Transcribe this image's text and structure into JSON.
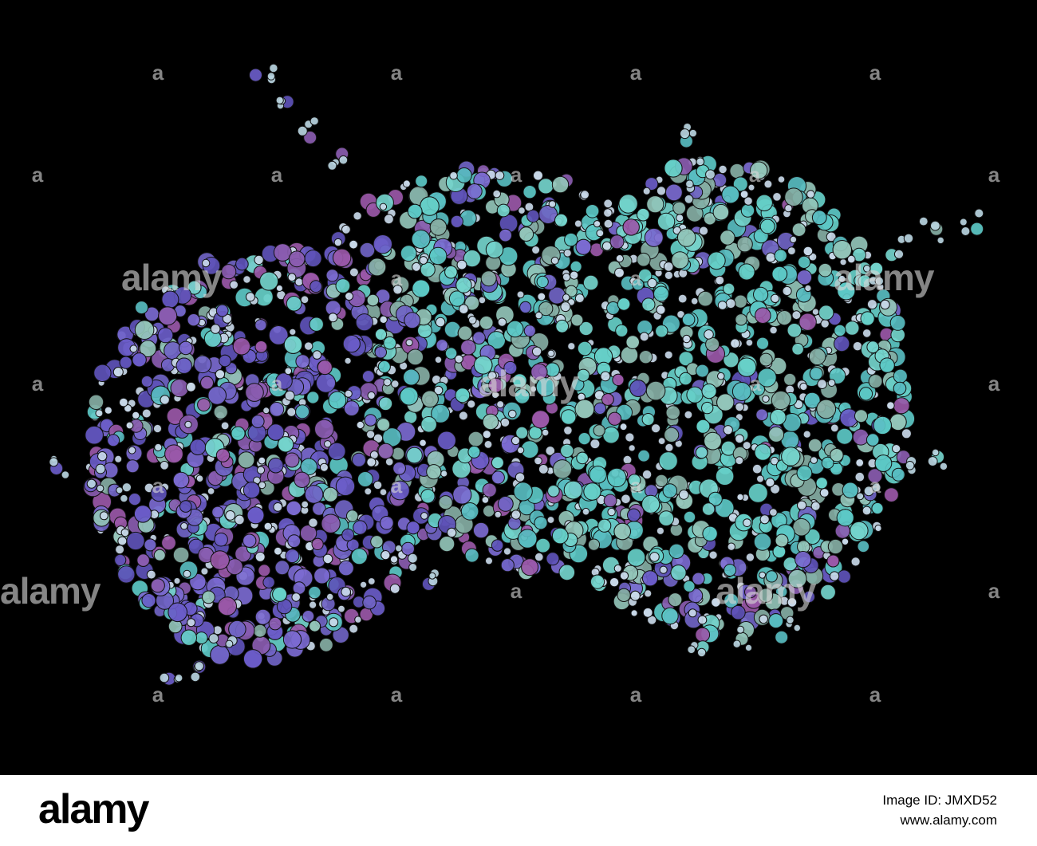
{
  "watermark": {
    "logo": "alamy",
    "mark": "a"
  },
  "footer": {
    "logo": "alamy",
    "image_id": "Image ID: JMXD52",
    "url": "www.alamy.com"
  }
}
